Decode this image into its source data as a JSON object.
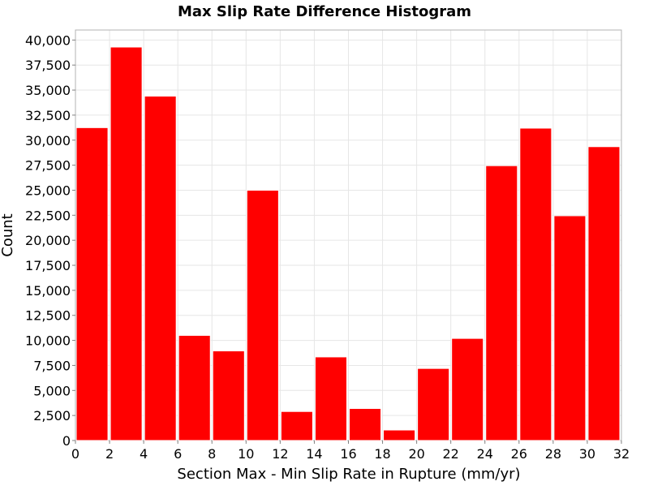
{
  "chart_data": {
    "type": "bar",
    "title": "Max Slip Rate Difference Histogram",
    "xlabel": "Section Max - Min Slip Rate in Rupture (mm/yr)",
    "ylabel": "Count",
    "bin_width": 2,
    "bins": [
      {
        "start": 0,
        "end": 2,
        "value": 31250
      },
      {
        "start": 2,
        "end": 4,
        "value": 39300
      },
      {
        "start": 4,
        "end": 6,
        "value": 34400
      },
      {
        "start": 6,
        "end": 8,
        "value": 10500
      },
      {
        "start": 8,
        "end": 10,
        "value": 8950
      },
      {
        "start": 10,
        "end": 12,
        "value": 25000
      },
      {
        "start": 12,
        "end": 14,
        "value": 2900
      },
      {
        "start": 14,
        "end": 16,
        "value": 8350
      },
      {
        "start": 16,
        "end": 18,
        "value": 3200
      },
      {
        "start": 18,
        "end": 20,
        "value": 1050
      },
      {
        "start": 20,
        "end": 22,
        "value": 7200
      },
      {
        "start": 22,
        "end": 24,
        "value": 10200
      },
      {
        "start": 24,
        "end": 26,
        "value": 27450
      },
      {
        "start": 26,
        "end": 28,
        "value": 31200
      },
      {
        "start": 28,
        "end": 30,
        "value": 22450
      },
      {
        "start": 30,
        "end": 32,
        "value": 29350
      }
    ],
    "xlim": [
      0,
      32
    ],
    "ylim": [
      0,
      41000
    ],
    "x_ticks": [
      {
        "value": 0,
        "label": "0"
      },
      {
        "value": 2,
        "label": "2"
      },
      {
        "value": 4,
        "label": "4"
      },
      {
        "value": 6,
        "label": "6"
      },
      {
        "value": 8,
        "label": "8"
      },
      {
        "value": 10,
        "label": "10"
      },
      {
        "value": 12,
        "label": "12"
      },
      {
        "value": 14,
        "label": "14"
      },
      {
        "value": 16,
        "label": "16"
      },
      {
        "value": 18,
        "label": "18"
      },
      {
        "value": 20,
        "label": "20"
      },
      {
        "value": 22,
        "label": "22"
      },
      {
        "value": 24,
        "label": "24"
      },
      {
        "value": 26,
        "label": "26"
      },
      {
        "value": 28,
        "label": "28"
      },
      {
        "value": 30,
        "label": "30"
      },
      {
        "value": 32,
        "label": "32"
      }
    ],
    "y_ticks": [
      {
        "value": 0,
        "label": "0"
      },
      {
        "value": 2500,
        "label": "2,500"
      },
      {
        "value": 5000,
        "label": "5,000"
      },
      {
        "value": 7500,
        "label": "7,500"
      },
      {
        "value": 10000,
        "label": "10,000"
      },
      {
        "value": 12500,
        "label": "12,500"
      },
      {
        "value": 15000,
        "label": "15,000"
      },
      {
        "value": 17500,
        "label": "17,500"
      },
      {
        "value": 20000,
        "label": "20,000"
      },
      {
        "value": 22500,
        "label": "22,500"
      },
      {
        "value": 25000,
        "label": "25,000"
      },
      {
        "value": 27500,
        "label": "27,500"
      },
      {
        "value": 30000,
        "label": "30,000"
      },
      {
        "value": 32500,
        "label": "32,500"
      },
      {
        "value": 35000,
        "label": "35,000"
      },
      {
        "value": 37500,
        "label": "37,500"
      },
      {
        "value": 40000,
        "label": "40,000"
      }
    ],
    "grid": true,
    "bar_color": "#ff0000",
    "bar_edge_color": "#ffffff",
    "grid_color": "#e6e6e6",
    "frame_color": "#b3b3b3"
  }
}
